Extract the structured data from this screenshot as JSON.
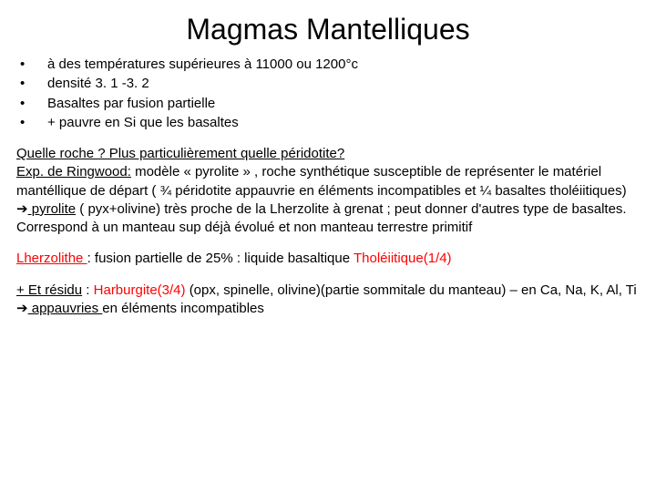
{
  "title": "Magmas Mantelliques",
  "bullets": [
    "à des températures supérieures à 11000 ou 1200°c",
    "densité 3. 1 -3. 2",
    "Basaltes par fusion partielle",
    "+ pauvre en Si que les basaltes"
  ],
  "para1": {
    "p1a": "Quelle roche ? Plus particulièrement quelle péridotite?",
    "p1b": "Exp. de Ringwood:",
    "p1c": " modèle  « pyrolite » , roche synthétique susceptible de représenter le matériel mantéllique de départ ( ¾ péridotite appauvrie en éléments incompatibles et ¼ basaltes tholéiitiques) ",
    "arrow1": "➔",
    "p1d": " pyrolite",
    "p1e": " ( pyx+olivine) très proche de la Lherzolite à grenat ; peut donner d'autres type de basaltes. Correspond à un  manteau sup déjà évolué  et non manteau terrestre primitif"
  },
  "para2": {
    "p2a": "Lherzolithe ",
    "p2b": ": fusion partielle de 25% : liquide basaltique ",
    "p2c": "Tholéiitique(1/4)"
  },
  "para3": {
    "p3a": "+ Et résidu",
    "p3b": " : ",
    "p3c": "Harburgite(3/4) ",
    "p3d": "(opx, spinelle, olivine)(partie sommitale du manteau) – en Ca, Na, K, Al, Ti ",
    "arrow2": "➔",
    "p3e": " appauvries ",
    "p3f": "en éléments incompatibles"
  },
  "colors": {
    "text": "#000000",
    "accent": "#ff0000",
    "background": "#ffffff"
  },
  "typography": {
    "title_size_pt": 32,
    "body_size_pt": 15,
    "family": "Arial"
  }
}
